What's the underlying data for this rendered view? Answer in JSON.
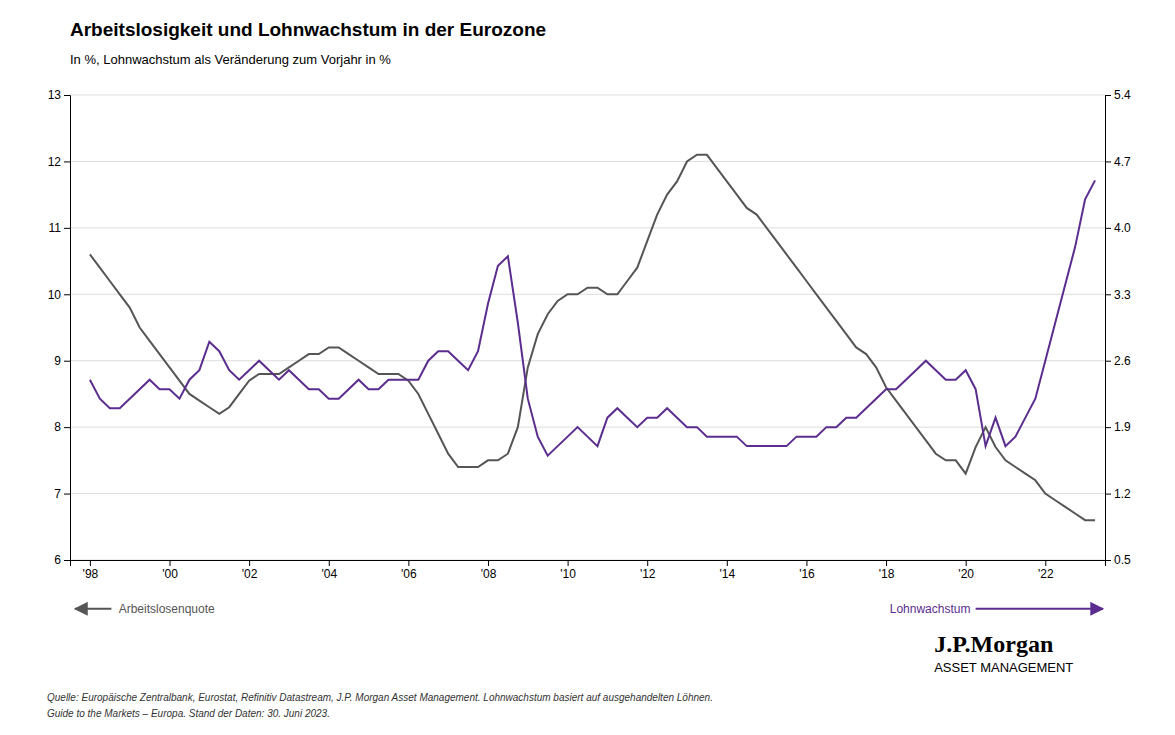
{
  "chart_data": {
    "type": "line",
    "title": "Arbeitslosigkeit und Lohnwachstum in der Eurozone",
    "subtitle": "In %, Lohnwachstum als Veränderung zum Vorjahr in %",
    "ylabel": "Arbeitslosenquote",
    "y2label": "Lohnwachstum",
    "annotations": [
      "Quelle: Europäische Zentralbank, Eurostat, Refinitiv Datastream, J.P. Morgan Asset Management. Lohnwachstum basiert auf ausgehandelten Löhnen.",
      "Guide to the Markets – Europa. Stand der Daten: 30. Juni 2023.",
      "J.P.Morgan",
      "ASSET MANAGEMENT"
    ],
    "x": [
      1998.0,
      1998.25,
      1998.5,
      1998.75,
      1999.0,
      1999.25,
      1999.5,
      1999.75,
      2000.0,
      2000.25,
      2000.5,
      2000.75,
      2001.0,
      2001.25,
      2001.5,
      2001.75,
      2002.0,
      2002.25,
      2002.5,
      2002.75,
      2003.0,
      2003.25,
      2003.5,
      2003.75,
      2004.0,
      2004.25,
      2004.5,
      2004.75,
      2005.0,
      2005.25,
      2005.5,
      2005.75,
      2006.0,
      2006.25,
      2006.5,
      2006.75,
      2007.0,
      2007.25,
      2007.5,
      2007.75,
      2008.0,
      2008.25,
      2008.5,
      2008.75,
      2009.0,
      2009.25,
      2009.5,
      2009.75,
      2010.0,
      2010.25,
      2010.5,
      2010.75,
      2011.0,
      2011.25,
      2011.5,
      2011.75,
      2012.0,
      2012.25,
      2012.5,
      2012.75,
      2013.0,
      2013.25,
      2013.5,
      2013.75,
      2014.0,
      2014.25,
      2014.5,
      2014.75,
      2015.0,
      2015.25,
      2015.5,
      2015.75,
      2016.0,
      2016.25,
      2016.5,
      2016.75,
      2017.0,
      2017.25,
      2017.5,
      2017.75,
      2018.0,
      2018.25,
      2018.5,
      2018.75,
      2019.0,
      2019.25,
      2019.5,
      2019.75,
      2020.0,
      2020.25,
      2020.5,
      2020.75,
      2021.0,
      2021.25,
      2021.5,
      2021.75,
      2022.0,
      2022.25,
      2022.5,
      2022.75,
      2023.0,
      2023.25
    ],
    "xlim": [
      1997.5,
      2023.5
    ],
    "xticks": [
      {
        "value": 1998,
        "label": "'98"
      },
      {
        "value": 2000,
        "label": "'00"
      },
      {
        "value": 2002,
        "label": "'02"
      },
      {
        "value": 2004,
        "label": "'04"
      },
      {
        "value": 2006,
        "label": "'06"
      },
      {
        "value": 2008,
        "label": "'08"
      },
      {
        "value": 2010,
        "label": "'10"
      },
      {
        "value": 2012,
        "label": "'12"
      },
      {
        "value": 2014,
        "label": "'14"
      },
      {
        "value": 2016,
        "label": "'16"
      },
      {
        "value": 2018,
        "label": "'18"
      },
      {
        "value": 2020,
        "label": "'20"
      },
      {
        "value": 2022,
        "label": "'22"
      }
    ],
    "ylim": [
      6,
      13
    ],
    "yticks": [
      6,
      7,
      8,
      9,
      10,
      11,
      12,
      13
    ],
    "y2lim": [
      0.5,
      5.4
    ],
    "y2ticks": [
      0.5,
      1.2,
      1.9,
      2.6,
      3.3,
      {
        "value": 4.0,
        "label": "4.0"
      },
      4.7,
      5.4
    ],
    "grid": true,
    "series": [
      {
        "color": "#555555",
        "values": [
          10.6,
          10.4,
          10.2,
          10.0,
          9.8,
          9.5,
          9.3,
          9.1,
          8.9,
          8.7,
          8.5,
          8.4,
          8.3,
          8.2,
          8.3,
          8.5,
          8.7,
          8.8,
          8.8,
          8.8,
          8.9,
          9.0,
          9.1,
          9.1,
          9.2,
          9.2,
          9.1,
          9.0,
          8.9,
          8.8,
          8.8,
          8.8,
          8.7,
          8.5,
          8.2,
          7.9,
          7.6,
          7.4,
          7.4,
          7.4,
          7.5,
          7.5,
          7.6,
          8.0,
          8.9,
          9.4,
          9.7,
          9.9,
          10.0,
          10.0,
          10.1,
          10.1,
          10.0,
          10.0,
          10.2,
          10.4,
          10.8,
          11.2,
          11.5,
          11.7,
          12.0,
          12.1,
          12.1,
          11.9,
          11.7,
          11.5,
          11.3,
          11.2,
          11.0,
          10.8,
          10.6,
          10.4,
          10.2,
          10.0,
          9.8,
          9.6,
          9.4,
          9.2,
          9.1,
          8.9,
          8.6,
          8.4,
          8.2,
          8.0,
          7.8,
          7.6,
          7.5,
          7.5,
          7.3,
          7.7,
          8.0,
          7.7,
          7.5,
          7.4,
          7.3,
          7.2,
          7.0,
          6.9,
          6.8,
          6.7,
          6.6,
          6.6
        ]
      },
      {
        "color": "#5b2d8e",
        "axis": "y2",
        "values": [
          2.4,
          2.2,
          2.1,
          2.1,
          2.2,
          2.3,
          2.4,
          2.3,
          2.3,
          2.2,
          2.4,
          2.5,
          2.8,
          2.7,
          2.5,
          2.4,
          2.5,
          2.6,
          2.5,
          2.4,
          2.5,
          2.4,
          2.3,
          2.3,
          2.2,
          2.2,
          2.3,
          2.4,
          2.3,
          2.3,
          2.4,
          2.4,
          2.4,
          2.4,
          2.6,
          2.7,
          2.7,
          2.6,
          2.5,
          2.7,
          3.2,
          3.6,
          3.7,
          3.0,
          2.2,
          1.8,
          1.6,
          1.7,
          1.8,
          1.9,
          1.8,
          1.7,
          2.0,
          2.1,
          2.0,
          1.9,
          2.0,
          2.0,
          2.1,
          2.0,
          1.9,
          1.9,
          1.8,
          1.8,
          1.8,
          1.8,
          1.7,
          1.7,
          1.7,
          1.7,
          1.7,
          1.8,
          1.8,
          1.8,
          1.9,
          1.9,
          2.0,
          2.0,
          2.1,
          2.2,
          2.3,
          2.3,
          2.4,
          2.5,
          2.6,
          2.5,
          2.4,
          2.4,
          2.5,
          2.3,
          1.7,
          2.0,
          1.7,
          1.8,
          2.0,
          2.2,
          2.6,
          3.0,
          3.4,
          3.8,
          4.3,
          4.5
        ]
      }
    ]
  }
}
